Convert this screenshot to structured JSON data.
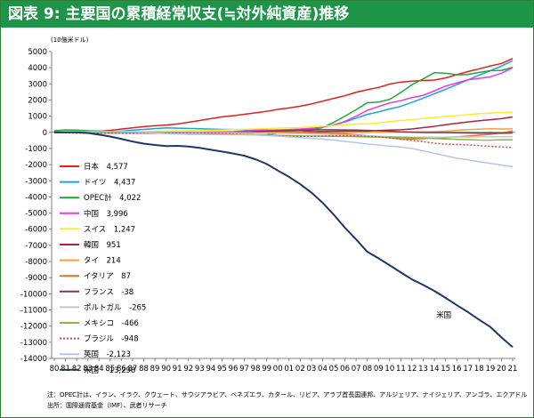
{
  "header": {
    "title": "図表 9: 主要国の累積経常収支(≒対外純資産)推移"
  },
  "footnote": {
    "line1": "注：OPEC計は、イラン、イラク、クウェート、サウジアラビア、ベネズエラ、カタール、リビア、アラブ首長国連邦、アルジェリア、ナイジェリア、アンゴラ、エクアドルの12カ国",
    "line2": "出所：国際通貨基金（IMF）、武者リサーチ"
  },
  "chart_data": {
    "type": "line",
    "title": "図表 9: 主要国の累積経常収支(≒対外純資産)推移",
    "ylabel": "(10億米ドル)",
    "xlabel": "",
    "ylim": [
      -14000,
      5000
    ],
    "yticks": [
      5000,
      4000,
      3000,
      2000,
      1000,
      0,
      -1000,
      -2000,
      -3000,
      -4000,
      -5000,
      -6000,
      -7000,
      -8000,
      -9000,
      -10000,
      -11000,
      -12000,
      -13000,
      -14000
    ],
    "grid": false,
    "legend": "left",
    "categories": [
      "80",
      "81",
      "82",
      "83",
      "84",
      "85",
      "86",
      "87",
      "88",
      "89",
      "90",
      "91",
      "92",
      "93",
      "94",
      "95",
      "96",
      "97",
      "98",
      "99",
      "00",
      "01",
      "02",
      "03",
      "04",
      "05",
      "06",
      "07",
      "08",
      "09",
      "10",
      "11",
      "12",
      "13",
      "14",
      "15",
      "16",
      "17",
      "18",
      "19",
      "20",
      "21"
    ],
    "annotations": [
      {
        "text": "米国",
        "series": "米国"
      }
    ],
    "series": [
      {
        "name": "日本",
        "display": "4,577",
        "color": "#e3201b",
        "dash": false,
        "values": [
          0,
          5,
          15,
          35,
          70,
          120,
          200,
          280,
          350,
          410,
          450,
          520,
          620,
          730,
          850,
          960,
          1030,
          1120,
          1210,
          1300,
          1420,
          1510,
          1620,
          1760,
          1930,
          2100,
          2270,
          2480,
          2640,
          2780,
          2990,
          3110,
          3170,
          3210,
          3240,
          3370,
          3570,
          3760,
          3930,
          4110,
          4260,
          4577
        ]
      },
      {
        "name": "ドイツ",
        "display": "4,437",
        "color": "#1ba3dd",
        "dash": false,
        "values": [
          -15,
          -10,
          0,
          10,
          20,
          40,
          80,
          130,
          180,
          230,
          280,
          260,
          240,
          220,
          200,
          180,
          175,
          170,
          160,
          140,
          100,
          110,
          150,
          200,
          330,
          460,
          640,
          880,
          1110,
          1260,
          1450,
          1610,
          1860,
          2110,
          2390,
          2660,
          2950,
          3250,
          3540,
          3810,
          4100,
          4437
        ]
      },
      {
        "name": "OPEC計",
        "display": "4,022",
        "color": "#1fa83a",
        "dash": false,
        "values": [
          100,
          150,
          140,
          100,
          80,
          60,
          30,
          20,
          10,
          0,
          20,
          -30,
          -60,
          -90,
          -110,
          -120,
          -110,
          -100,
          -160,
          -150,
          -50,
          0,
          20,
          110,
          300,
          620,
          1000,
          1400,
          1830,
          1870,
          2040,
          2470,
          2950,
          3310,
          3700,
          3660,
          3560,
          3580,
          3710,
          3820,
          3830,
          4022
        ]
      },
      {
        "name": "中国",
        "display": "3,996",
        "color": "#e83be0",
        "dash": false,
        "values": [
          0,
          2,
          8,
          12,
          14,
          10,
          0,
          -5,
          -10,
          -15,
          -10,
          0,
          10,
          10,
          20,
          30,
          40,
          80,
          110,
          130,
          150,
          170,
          200,
          250,
          320,
          450,
          680,
          1000,
          1360,
          1600,
          1820,
          1960,
          2150,
          2290,
          2570,
          2860,
          3060,
          3250,
          3340,
          3440,
          3660,
          3996
        ]
      },
      {
        "name": "スイス",
        "display": "1,247",
        "color": "#f5ef2a",
        "dash": false,
        "values": [
          0,
          5,
          10,
          15,
          20,
          30,
          40,
          50,
          60,
          70,
          80,
          90,
          105,
          120,
          135,
          150,
          170,
          190,
          210,
          230,
          260,
          280,
          300,
          340,
          380,
          420,
          470,
          510,
          530,
          590,
          670,
          730,
          790,
          860,
          920,
          980,
          1040,
          1100,
          1150,
          1190,
          1220,
          1247
        ]
      },
      {
        "name": "韓国",
        "display": "951",
        "color": "#b3203a",
        "dash": false,
        "values": [
          -5,
          -10,
          -15,
          -18,
          -20,
          -22,
          -20,
          -10,
          0,
          5,
          5,
          -5,
          -10,
          -12,
          -15,
          -20,
          -40,
          -50,
          -10,
          10,
          20,
          25,
          30,
          40,
          60,
          70,
          75,
          80,
          80,
          110,
          140,
          160,
          210,
          290,
          370,
          470,
          560,
          640,
          720,
          780,
          850,
          951
        ]
      },
      {
        "name": "タイ",
        "display": "214",
        "color": "#f4a23b",
        "dash": false,
        "values": [
          -2,
          -3,
          -4,
          -6,
          -8,
          -9,
          -9,
          -10,
          -12,
          -14,
          -20,
          -27,
          -33,
          -40,
          -48,
          -61,
          -75,
          -78,
          -63,
          -51,
          -42,
          -36,
          -31,
          -26,
          -23,
          -30,
          -28,
          -14,
          -12,
          10,
          20,
          30,
          30,
          30,
          45,
          75,
          123,
          167,
          195,
          225,
          210,
          214
        ]
      },
      {
        "name": "イタリア",
        "display": "87",
        "color": "#e0732b",
        "dash": false,
        "values": [
          -5,
          -20,
          -30,
          -30,
          -35,
          -40,
          -35,
          -40,
          -45,
          -55,
          -70,
          -95,
          -120,
          -115,
          -100,
          -75,
          -35,
          -5,
          15,
          25,
          20,
          20,
          10,
          -10,
          -30,
          -60,
          -100,
          -150,
          -210,
          -250,
          -330,
          -400,
          -410,
          -390,
          -350,
          -330,
          -280,
          -230,
          -180,
          -120,
          -40,
          87
        ]
      },
      {
        "name": "フランス",
        "display": "-38",
        "color": "#7a3a5a",
        "dash": false,
        "values": [
          -5,
          -10,
          -25,
          -30,
          -30,
          -30,
          -30,
          -35,
          -40,
          -45,
          -55,
          -60,
          -55,
          -45,
          -35,
          -25,
          -15,
          10,
          40,
          70,
          90,
          110,
          130,
          150,
          160,
          160,
          150,
          140,
          120,
          100,
          70,
          30,
          10,
          -10,
          -20,
          -20,
          -30,
          -40,
          -50,
          -40,
          -60,
          -38
        ]
      },
      {
        "name": "ポルトガル",
        "display": "-265",
        "color": "#c8c8c8",
        "dash": false,
        "values": [
          -5,
          -10,
          -15,
          -18,
          -20,
          -20,
          -18,
          -16,
          -15,
          -15,
          -15,
          -16,
          -17,
          -18,
          -20,
          -22,
          -24,
          -30,
          -38,
          -48,
          -60,
          -75,
          -88,
          -100,
          -118,
          -140,
          -165,
          -190,
          -220,
          -245,
          -270,
          -290,
          -300,
          -300,
          -300,
          -295,
          -290,
          -285,
          -280,
          -275,
          -270,
          -265
        ]
      },
      {
        "name": "メキシコ",
        "display": "-466",
        "color": "#8db84a",
        "dash": false,
        "values": [
          -10,
          -25,
          -30,
          -25,
          -20,
          -20,
          -22,
          -20,
          -25,
          -30,
          -37,
          -52,
          -76,
          -100,
          -130,
          -132,
          -135,
          -142,
          -158,
          -172,
          -190,
          -207,
          -223,
          -231,
          -238,
          -247,
          -254,
          -264,
          -284,
          -292,
          -297,
          -311,
          -328,
          -358,
          -383,
          -411,
          -435,
          -455,
          -479,
          -484,
          -460,
          -466
        ]
      },
      {
        "name": "ブラジル",
        "display": "-948",
        "color": "#c0504d",
        "dash": true,
        "values": [
          -13,
          -30,
          -45,
          -52,
          -52,
          -52,
          -57,
          -57,
          -53,
          -52,
          -55,
          -57,
          -57,
          -58,
          -59,
          -78,
          -101,
          -131,
          -165,
          -191,
          -215,
          -239,
          -247,
          -247,
          -235,
          -221,
          -207,
          -222,
          -250,
          -274,
          -350,
          -427,
          -500,
          -575,
          -676,
          -730,
          -754,
          -777,
          -820,
          -870,
          -900,
          -948
        ]
      },
      {
        "name": "英国",
        "display": "-2,123",
        "color": "#b4c6e7",
        "dash": false,
        "values": [
          10,
          30,
          40,
          45,
          45,
          50,
          45,
          30,
          0,
          -40,
          -80,
          -100,
          -110,
          -120,
          -130,
          -140,
          -150,
          -150,
          -160,
          -200,
          -240,
          -290,
          -330,
          -370,
          -420,
          -480,
          -560,
          -640,
          -720,
          -780,
          -860,
          -910,
          -1000,
          -1150,
          -1300,
          -1450,
          -1600,
          -1700,
          -1820,
          -1920,
          -2020,
          -2123
        ]
      },
      {
        "name": "米国",
        "display": "-13,298",
        "color": "#1f3864",
        "dash": false,
        "values": [
          0,
          5,
          0,
          -40,
          -140,
          -260,
          -410,
          -570,
          -700,
          -780,
          -850,
          -840,
          -880,
          -960,
          -1080,
          -1190,
          -1310,
          -1450,
          -1670,
          -1960,
          -2370,
          -2760,
          -3210,
          -3730,
          -4360,
          -5100,
          -5910,
          -6630,
          -7400,
          -7800,
          -8230,
          -8680,
          -9110,
          -9450,
          -9820,
          -10250,
          -10700,
          -11130,
          -11600,
          -12050,
          -12700,
          -13298
        ]
      }
    ]
  }
}
